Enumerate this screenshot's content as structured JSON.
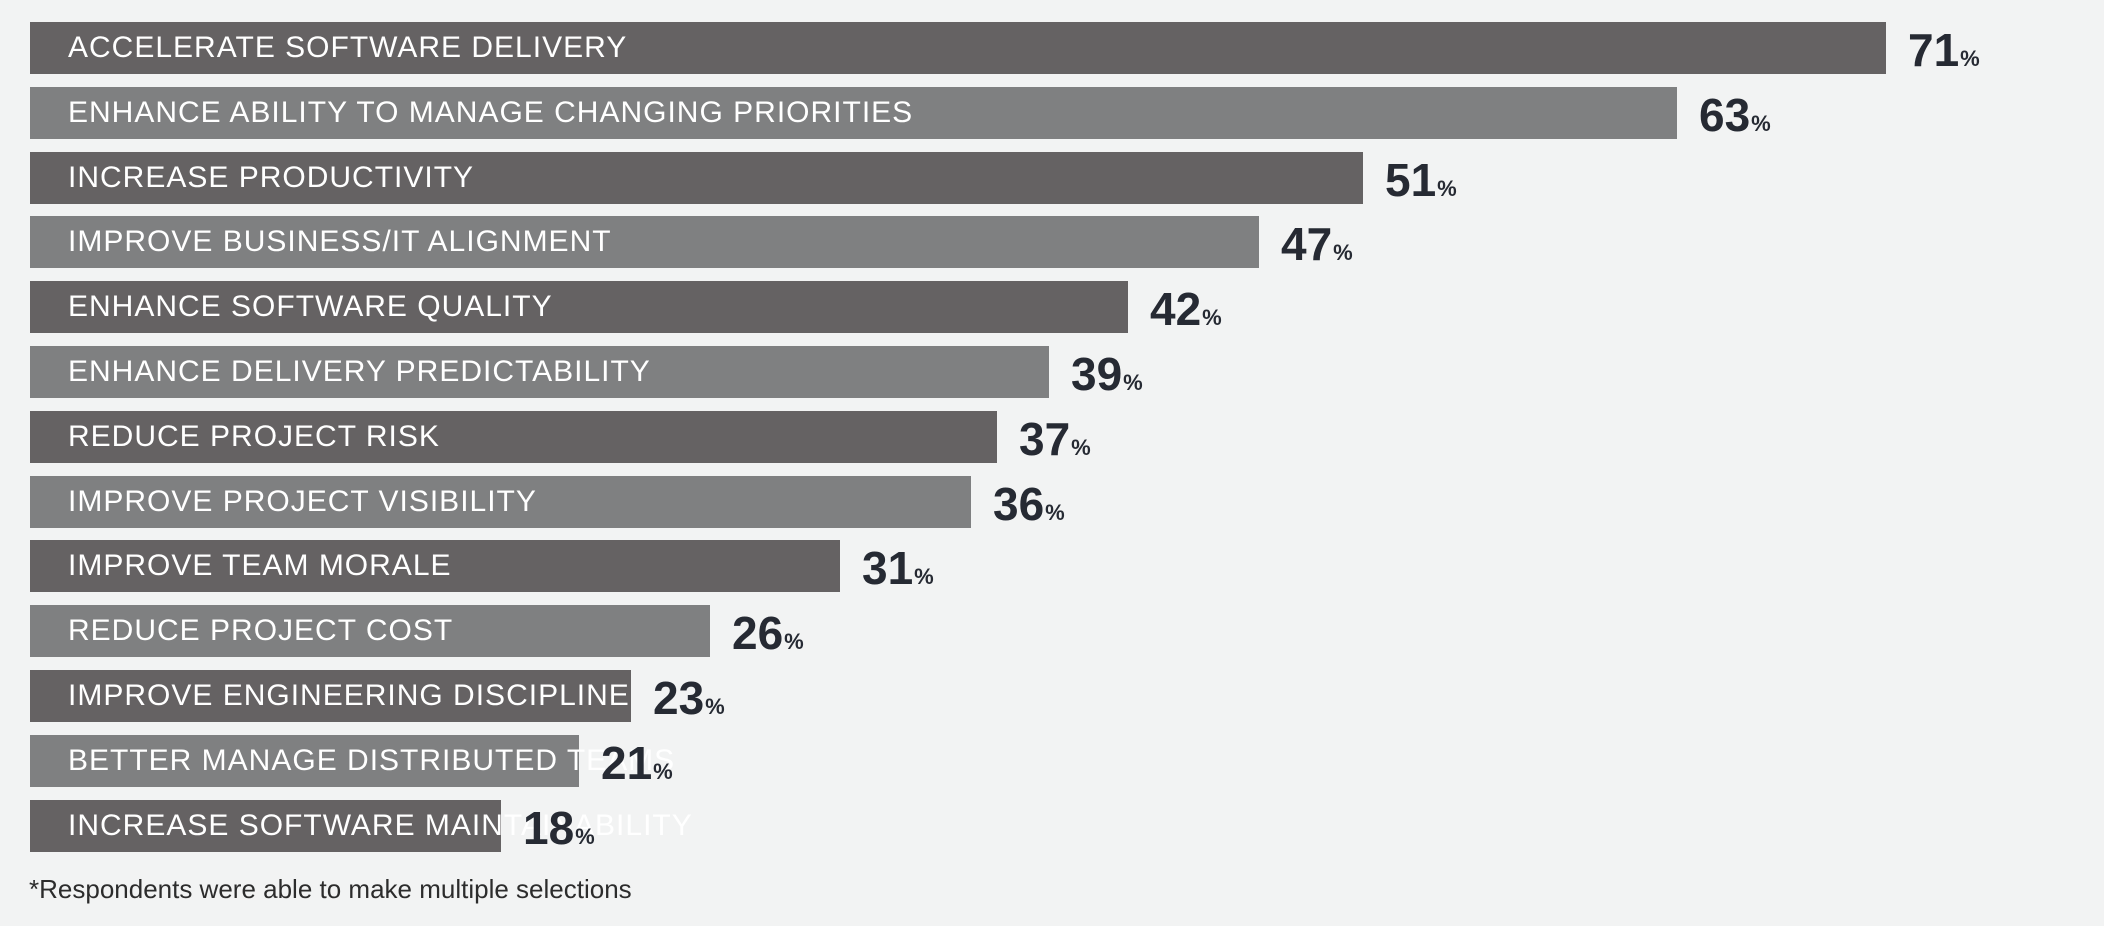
{
  "chart_data": {
    "type": "bar",
    "orientation": "horizontal",
    "categories": [
      "ACCELERATE SOFTWARE DELIVERY",
      "ENHANCE ABILITY TO MANAGE CHANGING PRIORITIES",
      "INCREASE PRODUCTIVITY",
      "IMPROVE BUSINESS/IT ALIGNMENT",
      "ENHANCE SOFTWARE QUALITY",
      "ENHANCE DELIVERY PREDICTABILITY",
      "REDUCE PROJECT RISK",
      "IMPROVE PROJECT VISIBILITY",
      "IMPROVE TEAM MORALE",
      "REDUCE PROJECT COST",
      "IMPROVE ENGINEERING DISCIPLINE",
      "BETTER MANAGE DISTRIBUTED TEAMS",
      "INCREASE SOFTWARE MAINTAINABILITY"
    ],
    "values": [
      71,
      63,
      51,
      47,
      42,
      39,
      37,
      36,
      31,
      26,
      23,
      21,
      18
    ],
    "value_unit": "%",
    "colors": [
      "#656263",
      "#7f8081"
    ],
    "title": "",
    "xlabel": "",
    "ylabel": "",
    "xlim": [
      0,
      100
    ],
    "grid": false,
    "legend": "none"
  },
  "footnote": "*Respondents were able to make multiple selections"
}
